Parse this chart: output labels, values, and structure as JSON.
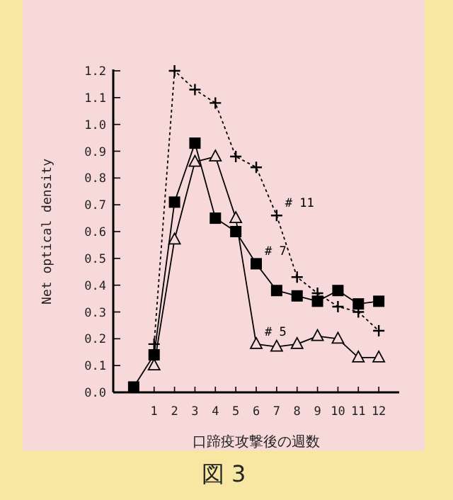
{
  "chart_data": {
    "type": "line",
    "xlabel": "口蹄疫攻撃後の週数",
    "ylabel": "Net optical density",
    "annotations": [
      "図 3"
    ],
    "xlim": [
      -1,
      13
    ],
    "ylim": [
      0,
      1.2
    ],
    "xticks": [
      1,
      2,
      3,
      4,
      5,
      6,
      7,
      8,
      9,
      10,
      11,
      12
    ],
    "yticks": [
      {
        "value": 0,
        "label": "0.0"
      },
      {
        "value": 0.1,
        "label": "0.1"
      },
      {
        "value": 0.2,
        "label": "0.2"
      },
      {
        "value": 0.3,
        "label": "0.3"
      },
      {
        "value": 0.4,
        "label": "0.4"
      },
      {
        "value": 0.5,
        "label": "0.5"
      },
      {
        "value": 0.6,
        "label": "0.6"
      },
      {
        "value": 0.7,
        "label": "0.7"
      },
      {
        "value": 0.8,
        "label": "0.8"
      },
      {
        "value": 0.9,
        "label": "0.9"
      },
      {
        "value": 1.0,
        "label": "1.0"
      },
      {
        "value": 1.1,
        "label": "1.1"
      },
      {
        "value": 1.2,
        "label": "1.2"
      }
    ],
    "grid": false,
    "legend": false,
    "series": [
      {
        "name": "# 11",
        "color": "#000000",
        "marker": "cross",
        "line_style": "dotted",
        "x": [
          1,
          2,
          3,
          4,
          5,
          6,
          7,
          8,
          9,
          10,
          11,
          12
        ],
        "values": [
          0.18,
          1.2,
          1.13,
          1.08,
          0.88,
          0.84,
          0.66,
          0.43,
          0.37,
          0.32,
          0.3,
          0.23
        ]
      },
      {
        "name": "# 7",
        "color": "#000000",
        "marker": "square",
        "line_style": "solid",
        "x": [
          0,
          1,
          2,
          3,
          4,
          5,
          6,
          7,
          8,
          9,
          10,
          11,
          12
        ],
        "values": [
          0.02,
          0.14,
          0.71,
          0.93,
          0.65,
          0.6,
          0.48,
          0.38,
          0.36,
          0.34,
          0.38,
          0.33,
          0.34
        ]
      },
      {
        "name": "# 5",
        "color": "#000000",
        "marker": "triangle",
        "line_style": "solid",
        "x": [
          1,
          2,
          3,
          4,
          5,
          6,
          7,
          8,
          9,
          10,
          11,
          12
        ],
        "values": [
          0.1,
          0.57,
          0.86,
          0.88,
          0.65,
          0.18,
          0.17,
          0.18,
          0.21,
          0.2,
          0.13,
          0.13
        ]
      }
    ]
  }
}
